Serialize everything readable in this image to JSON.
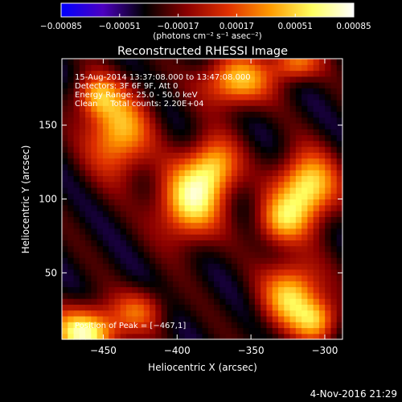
{
  "chart_data": {
    "type": "heatmap",
    "title": "Reconstructed RHESSI Image",
    "xlabel": "Heliocentric X (arcsec)",
    "ylabel": "Heliocentric Y (arcsec)",
    "xlim": [
      -478,
      -288
    ],
    "ylim": [
      5,
      195
    ],
    "x_ticks": [
      -450,
      -400,
      -350,
      -300
    ],
    "x_tick_labels": [
      "−450",
      "−400",
      "−350",
      "−300"
    ],
    "y_ticks": [
      50,
      100,
      150
    ],
    "y_tick_labels": [
      "50",
      "100",
      "150"
    ],
    "colorbar": {
      "range": [
        -0.00085,
        0.00085
      ],
      "ticks": [
        -0.00085,
        -0.00051,
        -0.00017,
        0.00017,
        0.00051,
        0.00085
      ],
      "tick_labels": [
        "−0.00085",
        "−0.00051",
        "−0.00017",
        "0.00017",
        "0.00051",
        "0.00085"
      ],
      "unit_label": "(photons cm⁻² s⁻¹ asec⁻²)",
      "colormap": [
        "#0000ff",
        "#4c00c0",
        "#000000",
        "#8a0000",
        "#e03000",
        "#ff9a00",
        "#ffff60",
        "#ffffff"
      ]
    },
    "annotations": [
      "15-Aug-2014 13:37:08.000 to 13:47:08.000",
      "Detectors: 3F 6F 9F, Att 0",
      "Energy Range: 25.0 - 50.0 keV",
      "Clean     Total counts: 2.20E+04"
    ],
    "peak_label": "Position of Peak = [−467,1]",
    "peak_position": [
      -467,
      1
    ],
    "blobs": [
      {
        "x": -462,
        "y": 10,
        "amp": 1.0,
        "sx": 16,
        "sy": 12
      },
      {
        "x": -440,
        "y": 145,
        "amp": 0.78,
        "sx": 15,
        "sy": 20
      },
      {
        "x": -455,
        "y": 170,
        "amp": 0.55,
        "sx": 10,
        "sy": 10
      },
      {
        "x": -392,
        "y": 98,
        "amp": 0.88,
        "sx": 15,
        "sy": 18
      },
      {
        "x": -375,
        "y": 122,
        "amp": 0.72,
        "sx": 12,
        "sy": 14
      },
      {
        "x": -360,
        "y": 180,
        "amp": 0.78,
        "sx": 16,
        "sy": 12
      },
      {
        "x": -320,
        "y": 192,
        "amp": 0.6,
        "sx": 12,
        "sy": 8
      },
      {
        "x": -312,
        "y": 108,
        "amp": 0.95,
        "sx": 14,
        "sy": 16
      },
      {
        "x": -330,
        "y": 85,
        "amp": 0.6,
        "sx": 12,
        "sy": 12
      },
      {
        "x": -322,
        "y": 35,
        "amp": 0.82,
        "sx": 14,
        "sy": 16
      },
      {
        "x": -305,
        "y": 18,
        "amp": 0.6,
        "sx": 10,
        "sy": 10
      },
      {
        "x": -425,
        "y": 25,
        "amp": 0.45,
        "sx": 12,
        "sy": 10
      }
    ]
  },
  "footer": {
    "timestamp": "4-Nov-2016 21:29"
  }
}
